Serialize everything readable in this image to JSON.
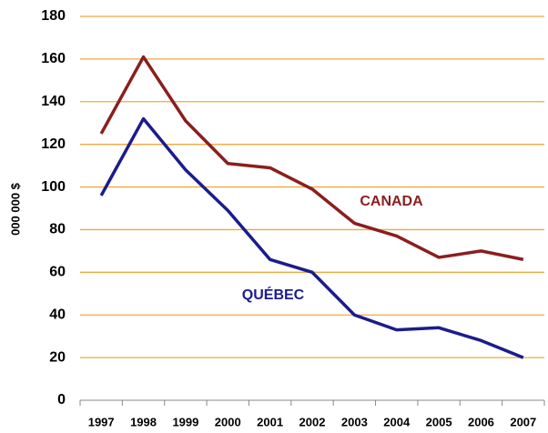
{
  "chart_data": {
    "type": "line",
    "y_label": "000 000 $",
    "categories": [
      "1997",
      "1998",
      "1999",
      "2000",
      "2001",
      "2002",
      "2003",
      "2004",
      "2005",
      "2006",
      "2007"
    ],
    "series": [
      {
        "name": "CANADA",
        "color": "#8b1e1e",
        "values": [
          125,
          161,
          131,
          111,
          109,
          99,
          83,
          77,
          67,
          70,
          66
        ]
      },
      {
        "name": "QUÉBEC",
        "color": "#1c1c8c",
        "values": [
          96,
          132,
          108,
          89,
          66,
          60,
          40,
          33,
          34,
          28,
          20
        ]
      }
    ],
    "ylim": [
      0,
      180
    ],
    "yticks": [
      0,
      20,
      40,
      60,
      80,
      100,
      120,
      140,
      160,
      180
    ],
    "grid": true,
    "grid_color": "#f2a93b"
  }
}
